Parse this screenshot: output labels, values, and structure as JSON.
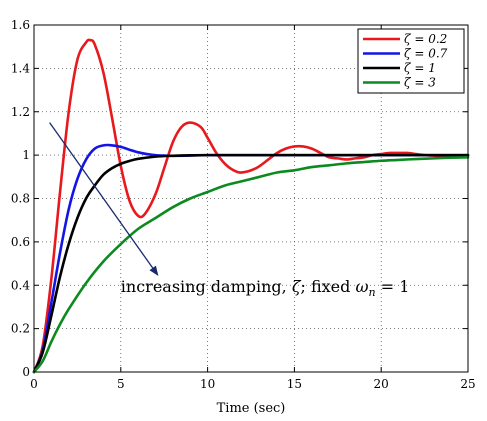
{
  "chart_data": {
    "type": "line",
    "title": "",
    "xlabel": "Time (sec)",
    "ylabel": "",
    "xlim": [
      0,
      25
    ],
    "ylim": [
      0,
      1.6
    ],
    "xticks": [
      "0",
      "5",
      "10",
      "15",
      "20",
      "25"
    ],
    "yticks": [
      "0",
      "0.2",
      "0.4",
      "0.6",
      "0.8",
      "1",
      "1.2",
      "1.4",
      "1.6"
    ],
    "grid": true,
    "legend_position": "top-right",
    "series": [
      {
        "name": "ζ = 0.2",
        "color": "#e8191d",
        "x": [
          0,
          0.5,
          1,
          1.5,
          2,
          2.5,
          3,
          3.25,
          3.5,
          4,
          4.5,
          5,
          5.5,
          6,
          6.4,
          7,
          7.5,
          8,
          8.5,
          9,
          9.6,
          10,
          10.5,
          11,
          11.5,
          12,
          12.8,
          13.5,
          14,
          14.5,
          15,
          15.5,
          16,
          16.5,
          17,
          17.5,
          18,
          18.5,
          19,
          19.5,
          20,
          20.5,
          21,
          21.5,
          22,
          22.5,
          23,
          23.5,
          24,
          24.5,
          25
        ],
        "y": [
          0,
          0.12,
          0.43,
          0.83,
          1.2,
          1.44,
          1.52,
          1.53,
          1.51,
          1.38,
          1.17,
          0.95,
          0.79,
          0.72,
          0.73,
          0.82,
          0.94,
          1.06,
          1.13,
          1.15,
          1.13,
          1.08,
          1.01,
          0.96,
          0.93,
          0.92,
          0.94,
          0.98,
          1.01,
          1.03,
          1.04,
          1.04,
          1.03,
          1.01,
          0.99,
          0.985,
          0.98,
          0.985,
          0.99,
          1.0,
          1.005,
          1.01,
          1.01,
          1.01,
          1.005,
          1.0,
          0.998,
          0.995,
          0.995,
          0.998,
          1.0
        ]
      },
      {
        "name": "ζ = 0.7",
        "color": "#1414e6",
        "x": [
          0,
          0.5,
          1,
          1.5,
          2,
          2.5,
          3,
          3.5,
          4,
          4.4,
          5,
          5.5,
          6,
          6.5,
          7,
          7.5,
          8,
          9,
          10,
          12,
          15,
          20,
          25
        ],
        "y": [
          0,
          0.1,
          0.32,
          0.55,
          0.75,
          0.89,
          0.98,
          1.03,
          1.045,
          1.046,
          1.038,
          1.025,
          1.013,
          1.005,
          1.0,
          0.998,
          0.997,
          0.998,
          1.0,
          1.0,
          1.0,
          1.0,
          1.0
        ]
      },
      {
        "name": "ζ = 1",
        "color": "#000000",
        "x": [
          0,
          0.5,
          1,
          1.5,
          2,
          2.5,
          3,
          3.5,
          4,
          4.5,
          5,
          5.5,
          6,
          7,
          8,
          9,
          10,
          12,
          15,
          20,
          25
        ],
        "y": [
          0,
          0.09,
          0.26,
          0.44,
          0.59,
          0.71,
          0.8,
          0.86,
          0.91,
          0.94,
          0.96,
          0.973,
          0.983,
          0.993,
          0.997,
          0.999,
          1.0,
          1.0,
          1.0,
          1.0,
          1.0
        ]
      },
      {
        "name": "ζ = 3",
        "color": "#0c8a1f",
        "x": [
          0,
          0.5,
          1,
          1.5,
          2,
          3,
          4,
          5,
          6,
          7,
          8,
          9,
          10,
          11,
          12,
          13,
          14,
          15,
          16,
          17,
          18,
          19,
          20,
          21,
          22,
          23,
          24,
          25
        ],
        "y": [
          0,
          0.05,
          0.14,
          0.22,
          0.29,
          0.41,
          0.51,
          0.59,
          0.66,
          0.71,
          0.76,
          0.8,
          0.83,
          0.86,
          0.88,
          0.9,
          0.92,
          0.93,
          0.945,
          0.953,
          0.962,
          0.968,
          0.974,
          0.978,
          0.982,
          0.985,
          0.988,
          0.99
        ]
      }
    ],
    "annotation": {
      "text_prefix": "increasing damping, ",
      "text_zeta": "ζ",
      "text_middle": "; fixed ",
      "text_omega": "ω",
      "text_sub": "n",
      "text_suffix": " = 1",
      "arrow_from": [
        0.9,
        1.15
      ],
      "arrow_to": [
        7.1,
        0.45
      ],
      "text_anchor": [
        5,
        0.37
      ],
      "arrow_color": "#1a2a6c"
    }
  }
}
